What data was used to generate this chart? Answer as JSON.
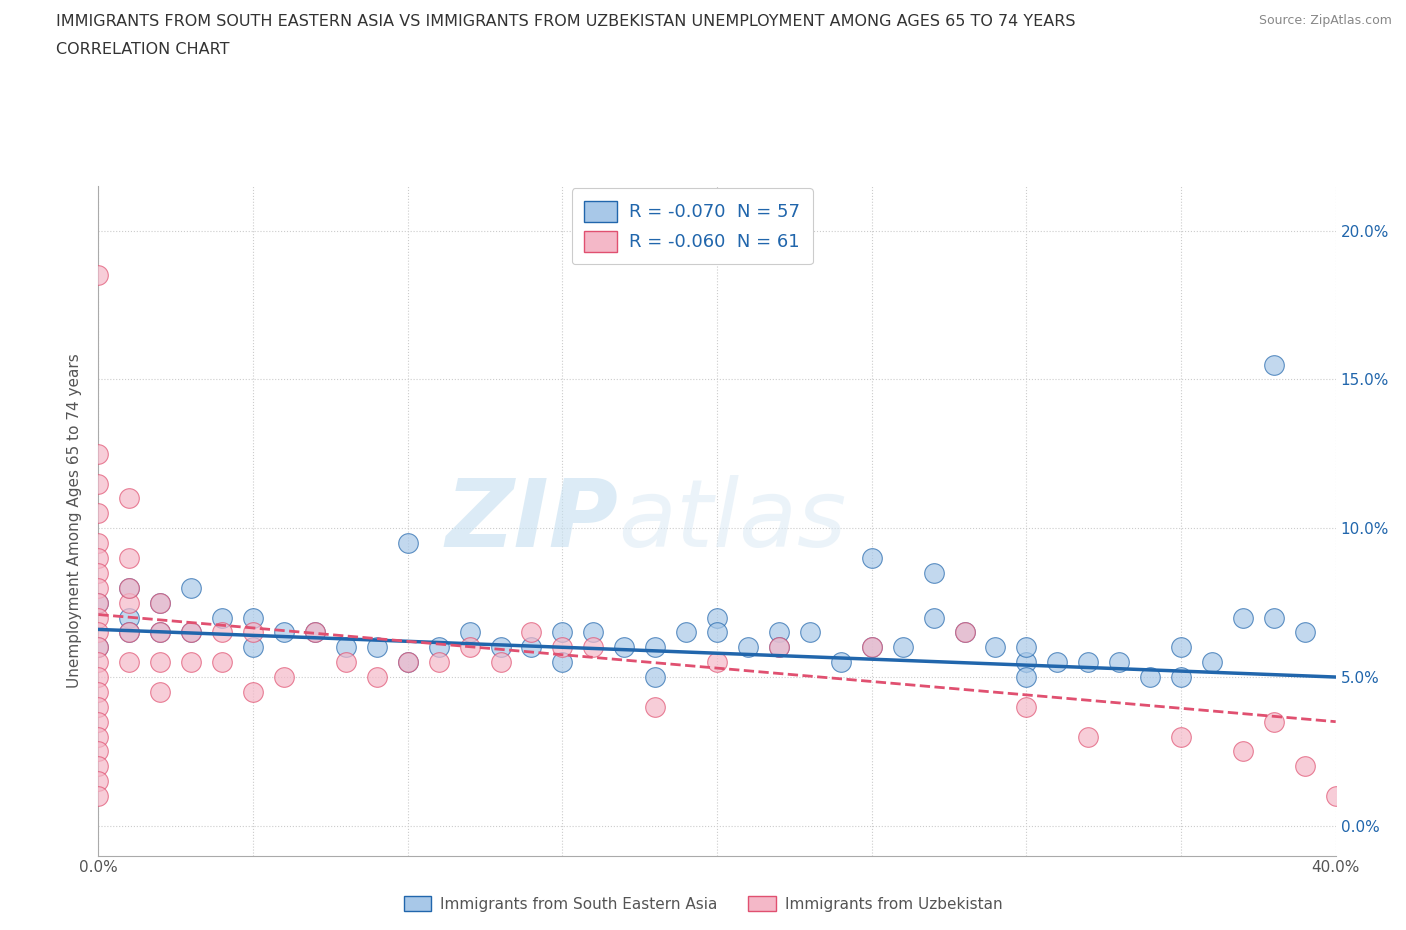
{
  "title_line1": "IMMIGRANTS FROM SOUTH EASTERN ASIA VS IMMIGRANTS FROM UZBEKISTAN UNEMPLOYMENT AMONG AGES 65 TO 74 YEARS",
  "title_line2": "CORRELATION CHART",
  "source": "Source: ZipAtlas.com",
  "ylabel": "Unemployment Among Ages 65 to 74 years",
  "xlim": [
    0.0,
    0.4
  ],
  "ylim": [
    -0.01,
    0.215
  ],
  "ytick_positions": [
    0.0,
    0.05,
    0.1,
    0.15,
    0.2
  ],
  "ytick_labels": [
    "0.0%",
    "5.0%",
    "10.0%",
    "15.0%",
    "20.0%"
  ],
  "xtick_positions": [
    0.0,
    0.05,
    0.1,
    0.15,
    0.2,
    0.25,
    0.3,
    0.35,
    0.4
  ],
  "xtick_labels": [
    "0.0%",
    "",
    "",
    "",
    "",
    "",
    "",
    "",
    "40.0%"
  ],
  "legend_r1": "R = -0.070  N = 57",
  "legend_r2": "R = -0.060  N = 61",
  "watermark": "ZIPatlas",
  "color_blue": "#a8c8e8",
  "color_pink": "#f4b8c8",
  "trendline_blue_color": "#2166ac",
  "trendline_pink_color": "#e05070",
  "blue_scatter_x": [
    0.0,
    0.0,
    0.01,
    0.01,
    0.01,
    0.02,
    0.02,
    0.03,
    0.03,
    0.04,
    0.05,
    0.05,
    0.06,
    0.07,
    0.08,
    0.09,
    0.1,
    0.11,
    0.12,
    0.13,
    0.14,
    0.15,
    0.16,
    0.17,
    0.18,
    0.19,
    0.2,
    0.21,
    0.22,
    0.23,
    0.24,
    0.25,
    0.26,
    0.27,
    0.28,
    0.29,
    0.3,
    0.3,
    0.31,
    0.32,
    0.33,
    0.34,
    0.35,
    0.36,
    0.37,
    0.38,
    0.39,
    0.25,
    0.27,
    0.2,
    0.15,
    0.1,
    0.22,
    0.18,
    0.3,
    0.35,
    0.38
  ],
  "blue_scatter_y": [
    0.075,
    0.06,
    0.08,
    0.07,
    0.065,
    0.075,
    0.065,
    0.08,
    0.065,
    0.07,
    0.07,
    0.06,
    0.065,
    0.065,
    0.06,
    0.06,
    0.095,
    0.06,
    0.065,
    0.06,
    0.06,
    0.065,
    0.065,
    0.06,
    0.06,
    0.065,
    0.07,
    0.06,
    0.065,
    0.065,
    0.055,
    0.06,
    0.06,
    0.07,
    0.065,
    0.06,
    0.055,
    0.06,
    0.055,
    0.055,
    0.055,
    0.05,
    0.06,
    0.055,
    0.07,
    0.155,
    0.065,
    0.09,
    0.085,
    0.065,
    0.055,
    0.055,
    0.06,
    0.05,
    0.05,
    0.05,
    0.07
  ],
  "pink_scatter_x": [
    0.0,
    0.0,
    0.0,
    0.0,
    0.0,
    0.0,
    0.0,
    0.0,
    0.0,
    0.0,
    0.0,
    0.0,
    0.0,
    0.0,
    0.0,
    0.0,
    0.0,
    0.0,
    0.0,
    0.0,
    0.0,
    0.0,
    0.01,
    0.01,
    0.01,
    0.01,
    0.01,
    0.02,
    0.02,
    0.02,
    0.02,
    0.03,
    0.03,
    0.04,
    0.04,
    0.05,
    0.05,
    0.06,
    0.07,
    0.08,
    0.09,
    0.1,
    0.11,
    0.12,
    0.13,
    0.14,
    0.15,
    0.16,
    0.18,
    0.2,
    0.22,
    0.25,
    0.28,
    0.3,
    0.32,
    0.35,
    0.37,
    0.38,
    0.39,
    0.4,
    0.01
  ],
  "pink_scatter_y": [
    0.185,
    0.125,
    0.115,
    0.105,
    0.095,
    0.09,
    0.085,
    0.08,
    0.075,
    0.07,
    0.065,
    0.06,
    0.055,
    0.05,
    0.045,
    0.04,
    0.035,
    0.03,
    0.025,
    0.02,
    0.015,
    0.01,
    0.11,
    0.09,
    0.075,
    0.065,
    0.055,
    0.075,
    0.065,
    0.055,
    0.045,
    0.065,
    0.055,
    0.065,
    0.055,
    0.065,
    0.045,
    0.05,
    0.065,
    0.055,
    0.05,
    0.055,
    0.055,
    0.06,
    0.055,
    0.065,
    0.06,
    0.06,
    0.04,
    0.055,
    0.06,
    0.06,
    0.065,
    0.04,
    0.03,
    0.03,
    0.025,
    0.035,
    0.02,
    0.01,
    0.08
  ],
  "blue_trend_x": [
    0.0,
    0.4
  ],
  "blue_trend_y": [
    0.066,
    0.05
  ],
  "pink_trend_x": [
    0.0,
    0.4
  ],
  "pink_trend_y": [
    0.071,
    0.035
  ]
}
